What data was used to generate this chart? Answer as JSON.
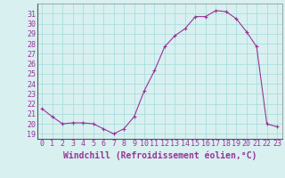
{
  "x": [
    0,
    1,
    2,
    3,
    4,
    5,
    6,
    7,
    8,
    9,
    10,
    11,
    12,
    13,
    14,
    15,
    16,
    17,
    18,
    19,
    20,
    21,
    22,
    23
  ],
  "y": [
    21.5,
    20.7,
    20.0,
    20.1,
    20.1,
    20.0,
    19.5,
    19.0,
    19.5,
    20.7,
    23.3,
    25.3,
    27.7,
    28.8,
    29.5,
    30.7,
    30.7,
    31.3,
    31.2,
    30.5,
    29.2,
    27.7,
    20.0,
    19.7
  ],
  "line_color": "#993399",
  "marker": "+",
  "marker_size": 3,
  "bg_color": "#d8f0f0",
  "grid_color": "#aadddd",
  "xlabel": "Windchill (Refroidissement éolien,°C)",
  "xlabel_fontsize": 7,
  "ylabel_ticks": [
    19,
    20,
    21,
    22,
    23,
    24,
    25,
    26,
    27,
    28,
    29,
    30,
    31
  ],
  "ylim": [
    18.5,
    32.0
  ],
  "xlim": [
    -0.5,
    23.5
  ],
  "tick_fontsize": 6,
  "xtick_labels": [
    "0",
    "1",
    "2",
    "3",
    "4",
    "5",
    "6",
    "7",
    "8",
    "9",
    "10",
    "11",
    "12",
    "13",
    "14",
    "15",
    "16",
    "17",
    "18",
    "19",
    "20",
    "21",
    "22",
    "23"
  ],
  "label_color": "#993399",
  "axis_label_color": "#993399",
  "spine_color": "#888888"
}
